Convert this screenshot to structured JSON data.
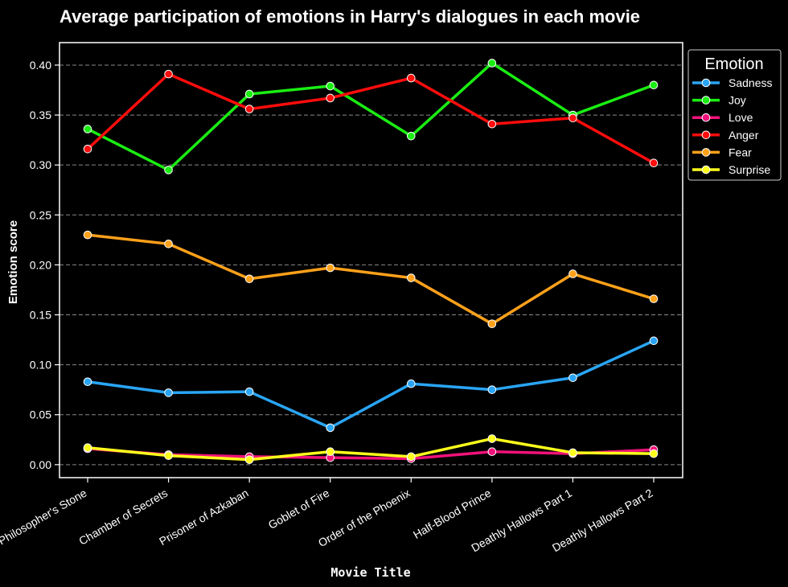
{
  "chart_data": {
    "type": "line",
    "title": "Average participation of emotions in Harry's dialogues in each movie",
    "xlabel": "Movie Title",
    "ylabel": "Emotion score",
    "categories": [
      "Philosopher's Stone",
      "Chamber of Secrets",
      "Prisoner of Azkaban",
      "Goblet of Fire",
      "Order of the Phoenix",
      "Half-Blood Prince",
      "Deathly Hallows Part 1",
      "Deathly Hallows Part 2"
    ],
    "ylim": [
      -0.013,
      0.4225
    ],
    "yticks": [
      0.0,
      0.05,
      0.1,
      0.15,
      0.2,
      0.25,
      0.3,
      0.35,
      0.4
    ],
    "ytick_labels": [
      "0.00",
      "0.05",
      "0.10",
      "0.15",
      "0.20",
      "0.25",
      "0.30",
      "0.35",
      "0.40"
    ],
    "grid": "horizontal dashed",
    "legend": {
      "title": "Emotion",
      "placement": "outside top-right"
    },
    "series": [
      {
        "name": "Sadness",
        "color": "#2aa5f5",
        "values": [
          0.083,
          0.072,
          0.073,
          0.037,
          0.081,
          0.075,
          0.087,
          0.124
        ]
      },
      {
        "name": "Joy",
        "color": "#1aee12",
        "values": [
          0.336,
          0.295,
          0.371,
          0.379,
          0.329,
          0.402,
          0.35,
          0.38
        ]
      },
      {
        "name": "Love",
        "color": "#f0127a",
        "values": [
          0.016,
          0.01,
          0.008,
          0.007,
          0.006,
          0.013,
          0.011,
          0.015
        ]
      },
      {
        "name": "Anger",
        "color": "#ff0c0c",
        "values": [
          0.316,
          0.391,
          0.356,
          0.367,
          0.387,
          0.341,
          0.347,
          0.302
        ]
      },
      {
        "name": "Fear",
        "color": "#ffa11a",
        "values": [
          0.23,
          0.221,
          0.186,
          0.197,
          0.187,
          0.141,
          0.191,
          0.166
        ]
      },
      {
        "name": "Surprise",
        "color": "#ffff1c",
        "values": [
          0.017,
          0.009,
          0.005,
          0.013,
          0.008,
          0.026,
          0.012,
          0.011
        ]
      }
    ]
  }
}
